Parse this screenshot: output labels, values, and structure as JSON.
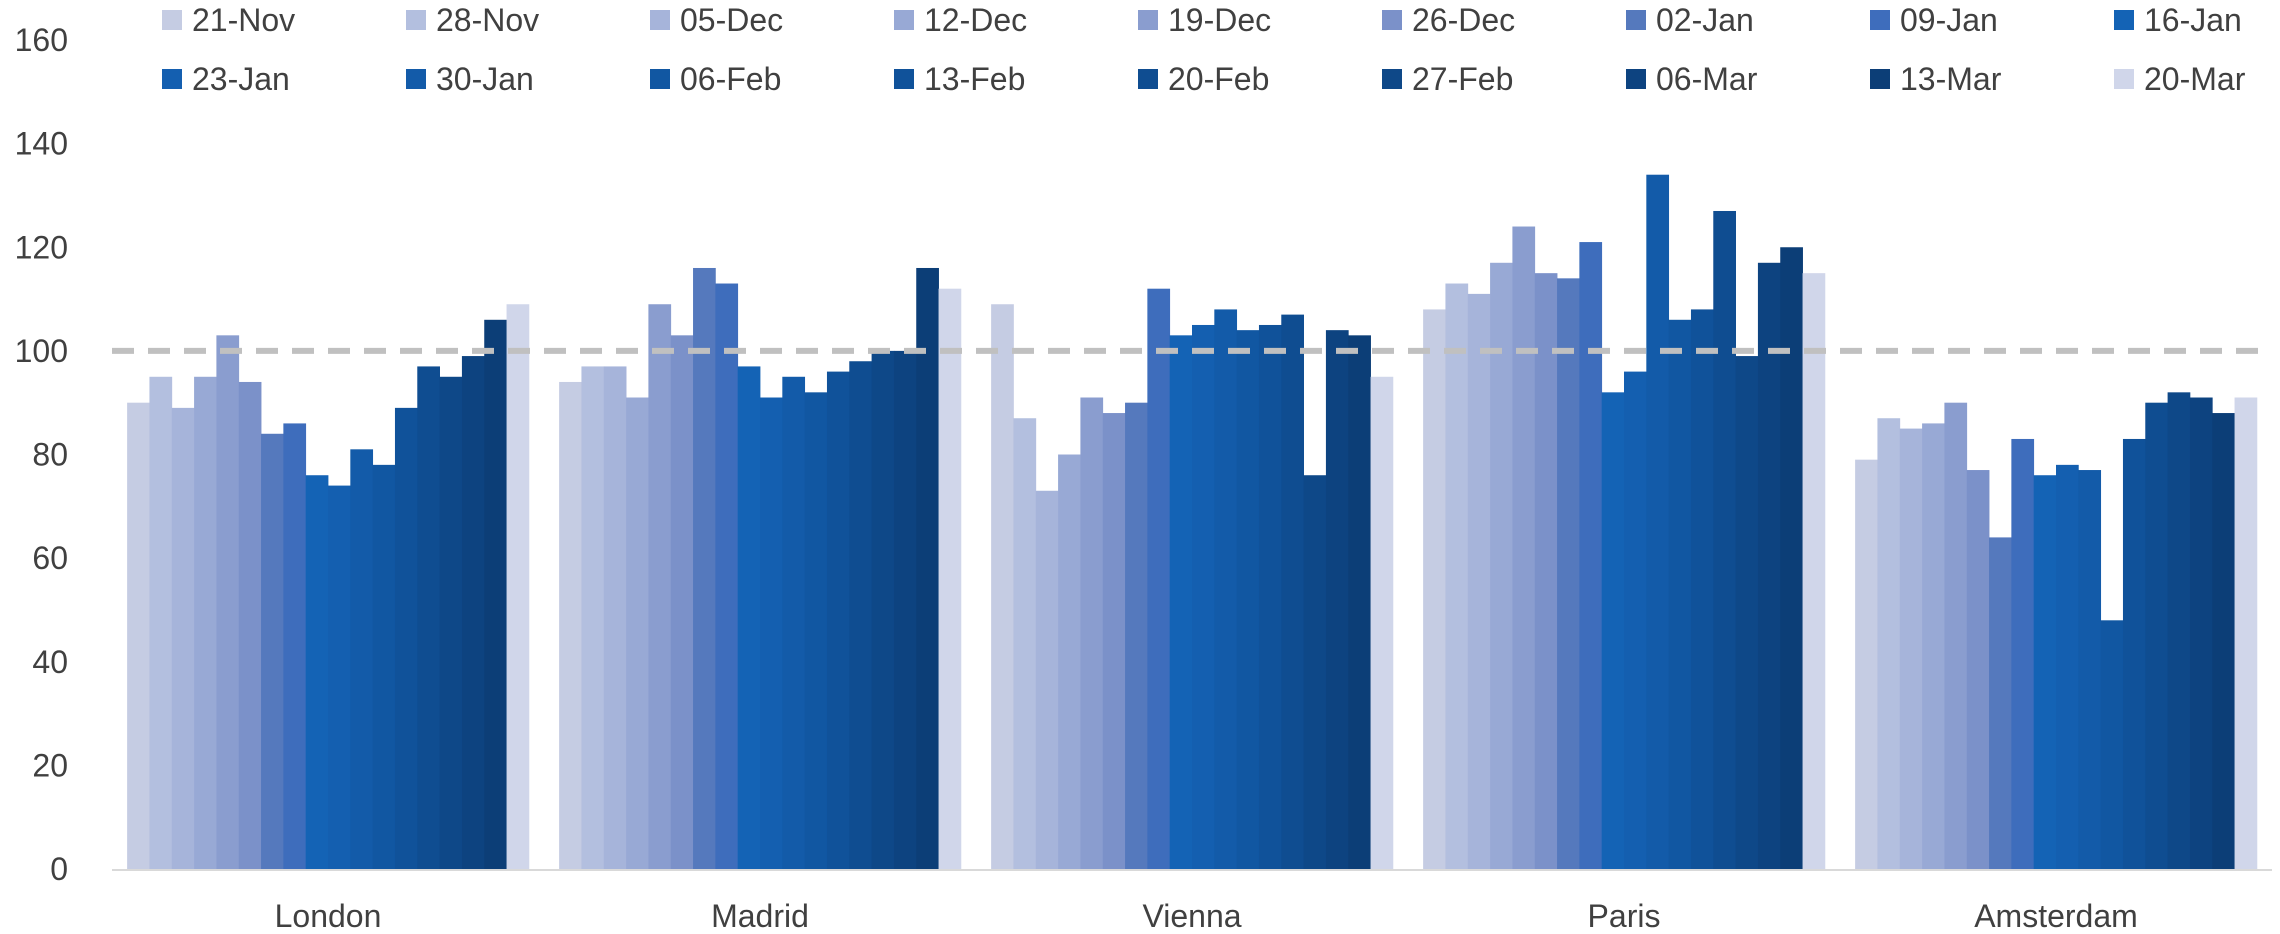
{
  "chart_data": {
    "type": "bar",
    "categories": [
      "London",
      "Madrid",
      "Vienna",
      "Paris",
      "Amsterdam"
    ],
    "ylim": [
      0,
      160
    ],
    "yticks": [
      0,
      20,
      40,
      60,
      80,
      100,
      120,
      140,
      160
    ],
    "reference_line": 100,
    "reference_line_style": "dashed",
    "reference_line_color": "#c0c0c0",
    "grid": false,
    "legend_position": "top",
    "series": [
      {
        "name": "21-Nov",
        "color": "#c5cce3",
        "values": [
          90,
          94,
          109,
          108,
          79
        ]
      },
      {
        "name": "28-Nov",
        "color": "#b3bfdf",
        "values": [
          95,
          97,
          87,
          113,
          87
        ]
      },
      {
        "name": "05-Dec",
        "color": "#a6b4da",
        "values": [
          89,
          97,
          73,
          111,
          85
        ]
      },
      {
        "name": "12-Dec",
        "color": "#98a9d5",
        "values": [
          95,
          91,
          80,
          117,
          86
        ]
      },
      {
        "name": "19-Dec",
        "color": "#8a9dcf",
        "values": [
          103,
          109,
          91,
          124,
          90
        ]
      },
      {
        "name": "26-Dec",
        "color": "#7b91c9",
        "values": [
          94,
          103,
          88,
          115,
          77
        ]
      },
      {
        "name": "02-Jan",
        "color": "#5579bd",
        "values": [
          84,
          116,
          90,
          114,
          64
        ]
      },
      {
        "name": "09-Jan",
        "color": "#3e6dbc",
        "values": [
          86,
          113,
          112,
          121,
          83
        ]
      },
      {
        "name": "16-Jan",
        "color": "#1463b5",
        "values": [
          76,
          97,
          103,
          92,
          76
        ]
      },
      {
        "name": "23-Jan",
        "color": "#145fb0",
        "values": [
          74,
          91,
          105,
          96,
          78
        ]
      },
      {
        "name": "30-Jan",
        "color": "#135ba9",
        "values": [
          81,
          95,
          108,
          134,
          77
        ]
      },
      {
        "name": "06-Feb",
        "color": "#1157a2",
        "values": [
          78,
          92,
          104,
          106,
          48
        ]
      },
      {
        "name": "13-Feb",
        "color": "#10529a",
        "values": [
          89,
          96,
          105,
          108,
          83
        ]
      },
      {
        "name": "20-Feb",
        "color": "#0f4d91",
        "values": [
          97,
          98,
          107,
          127,
          90
        ]
      },
      {
        "name": "27-Feb",
        "color": "#0e4888",
        "values": [
          95,
          100,
          76,
          99,
          92
        ]
      },
      {
        "name": "06-Mar",
        "color": "#0d4380",
        "values": [
          99,
          100,
          104,
          117,
          91
        ]
      },
      {
        "name": "13-Mar",
        "color": "#0c3e77",
        "values": [
          106,
          116,
          103,
          120,
          88
        ]
      },
      {
        "name": "20-Mar",
        "color": "#d0d6ea",
        "values": [
          109,
          112,
          95,
          115,
          91
        ]
      }
    ]
  }
}
